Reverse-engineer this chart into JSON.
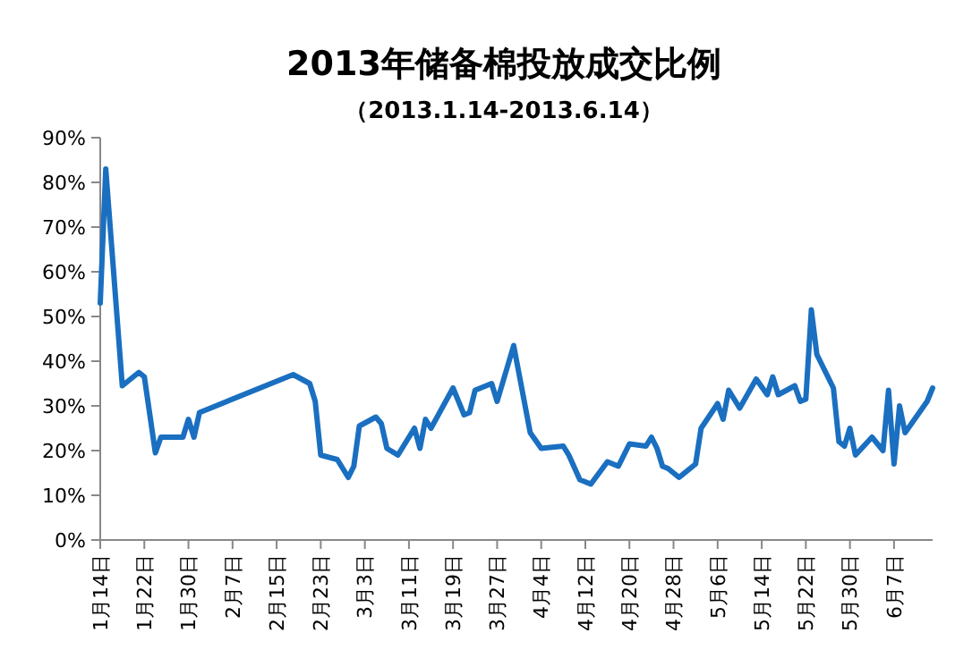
{
  "chart_data": {
    "type": "line",
    "title": "2013年储备棉投放成交比例",
    "subtitle": "（2013.1.14-2013.6.14）",
    "x": [
      "2013-01-14",
      "2013-01-15",
      "2013-01-18",
      "2013-01-21",
      "2013-01-22",
      "2013-01-24",
      "2013-01-25",
      "2013-01-29",
      "2013-01-30",
      "2013-01-31",
      "2013-02-01",
      "2013-02-18",
      "2013-02-21",
      "2013-02-22",
      "2013-02-23",
      "2013-02-26",
      "2013-02-28",
      "2013-03-01",
      "2013-03-02",
      "2013-03-05",
      "2013-03-06",
      "2013-03-07",
      "2013-03-09",
      "2013-03-12",
      "2013-03-13",
      "2013-03-14",
      "2013-03-15",
      "2013-03-19",
      "2013-03-21",
      "2013-03-22",
      "2013-03-23",
      "2013-03-26",
      "2013-03-27",
      "2013-03-30",
      "2013-04-02",
      "2013-04-04",
      "2013-04-08",
      "2013-04-09",
      "2013-04-11",
      "2013-04-13",
      "2013-04-16",
      "2013-04-18",
      "2013-04-20",
      "2013-04-23",
      "2013-04-24",
      "2013-04-25",
      "2013-04-26",
      "2013-04-27",
      "2013-04-29",
      "2013-05-02",
      "2013-05-03",
      "2013-05-06",
      "2013-05-07",
      "2013-05-08",
      "2013-05-10",
      "2013-05-13",
      "2013-05-15",
      "2013-05-16",
      "2013-05-17",
      "2013-05-20",
      "2013-05-21",
      "2013-05-22",
      "2013-05-23",
      "2013-05-24",
      "2013-05-27",
      "2013-05-28",
      "2013-05-29",
      "2013-05-30",
      "2013-05-31",
      "2013-06-03",
      "2013-06-05",
      "2013-06-06",
      "2013-06-07",
      "2013-06-08",
      "2013-06-09",
      "2013-06-13",
      "2013-06-14"
    ],
    "series": [
      {
        "color": "#1a6fc0",
        "values": [
          53,
          83,
          34.5,
          37.5,
          36.5,
          19.5,
          23,
          23,
          27,
          23,
          28.5,
          37,
          35,
          31,
          19,
          18,
          14,
          16.5,
          25.5,
          27.5,
          26,
          20.5,
          19,
          25,
          20.5,
          27,
          25,
          34,
          28,
          28.5,
          33.5,
          35,
          31,
          43.5,
          24,
          20.5,
          21,
          19,
          13.5,
          12.5,
          17.5,
          16.5,
          21.5,
          21,
          23,
          20.5,
          16.5,
          16,
          14,
          17,
          25,
          30.5,
          27,
          33.5,
          29.5,
          36,
          32.5,
          36.5,
          32.5,
          34.5,
          31,
          31.5,
          51.5,
          41.5,
          34,
          22,
          21,
          25,
          19,
          23,
          20,
          33.5,
          17,
          30,
          24,
          31,
          34
        ]
      }
    ],
    "xlim": [
      "2013-01-14",
      "2013-06-14"
    ],
    "xticks": [
      {
        "value": "2013-01-14",
        "label": "1月14日"
      },
      {
        "value": "2013-01-22",
        "label": "1月22日"
      },
      {
        "value": "2013-01-30",
        "label": "1月30日"
      },
      {
        "value": "2013-02-07",
        "label": "2月7日"
      },
      {
        "value": "2013-02-15",
        "label": "2月15日"
      },
      {
        "value": "2013-02-23",
        "label": "2月23日"
      },
      {
        "value": "2013-03-03",
        "label": "3月3日"
      },
      {
        "value": "2013-03-11",
        "label": "3月11日"
      },
      {
        "value": "2013-03-19",
        "label": "3月19日"
      },
      {
        "value": "2013-03-27",
        "label": "3月27日"
      },
      {
        "value": "2013-04-04",
        "label": "4月4日"
      },
      {
        "value": "2013-04-12",
        "label": "4月12日"
      },
      {
        "value": "2013-04-20",
        "label": "4月20日"
      },
      {
        "value": "2013-04-28",
        "label": "4月28日"
      },
      {
        "value": "2013-05-06",
        "label": "5月6日"
      },
      {
        "value": "2013-05-14",
        "label": "5月14日"
      },
      {
        "value": "2013-05-22",
        "label": "5月22日"
      },
      {
        "value": "2013-05-30",
        "label": "5月30日"
      },
      {
        "value": "2013-06-07",
        "label": "6月7日"
      }
    ],
    "ylim": [
      0,
      90
    ],
    "yticks": [
      {
        "value": 0,
        "label": "0%"
      },
      {
        "value": 10,
        "label": "10%"
      },
      {
        "value": 20,
        "label": "20%"
      },
      {
        "value": 30,
        "label": "30%"
      },
      {
        "value": 40,
        "label": "40%"
      },
      {
        "value": 50,
        "label": "50%"
      },
      {
        "value": 60,
        "label": "60%"
      },
      {
        "value": 70,
        "label": "70%"
      },
      {
        "value": 80,
        "label": "80%"
      },
      {
        "value": 90,
        "label": "90%"
      }
    ],
    "grid": false,
    "marker": "none",
    "line_style": "solid"
  }
}
